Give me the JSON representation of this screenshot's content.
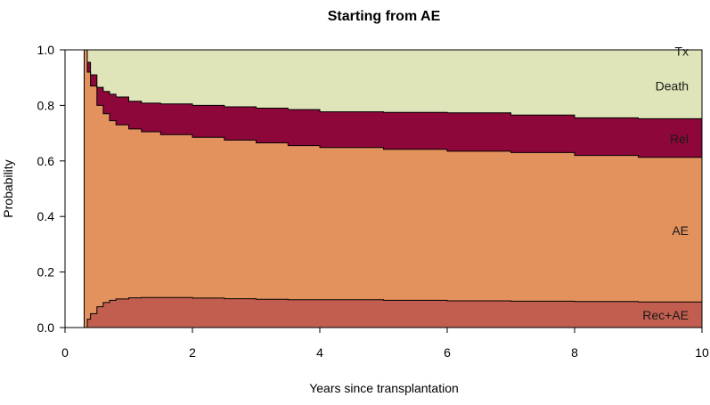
{
  "chart_data": {
    "type": "area",
    "stacked": true,
    "title": "Starting from AE",
    "xlabel": "Years since transplantation",
    "ylabel": "Probability",
    "xlim": [
      0,
      10
    ],
    "ylim": [
      0,
      1
    ],
    "xticks": [
      "0",
      "2",
      "4",
      "6",
      "8",
      "10"
    ],
    "yticks": [
      "0.0",
      "0.2",
      "0.4",
      "0.6",
      "0.8",
      "1.0"
    ],
    "x": [
      0.3,
      0.35,
      0.4,
      0.5,
      0.6,
      0.7,
      0.8,
      1.0,
      1.2,
      1.5,
      2.0,
      2.5,
      3.0,
      3.5,
      4.0,
      5.0,
      6.0,
      7.0,
      8.0,
      9.0,
      10.0
    ],
    "cumulative_upper_bounds": {
      "Rec+AE": [
        0.0,
        0.03,
        0.05,
        0.075,
        0.09,
        0.098,
        0.103,
        0.107,
        0.108,
        0.108,
        0.106,
        0.104,
        0.102,
        0.1,
        0.1,
        0.098,
        0.096,
        0.095,
        0.094,
        0.092,
        0.09
      ],
      "AE": [
        1.0,
        0.92,
        0.87,
        0.8,
        0.77,
        0.745,
        0.73,
        0.715,
        0.705,
        0.695,
        0.685,
        0.675,
        0.665,
        0.655,
        0.648,
        0.642,
        0.635,
        0.63,
        0.62,
        0.613,
        0.61
      ],
      "Rel": [
        1.0,
        0.955,
        0.91,
        0.865,
        0.85,
        0.84,
        0.83,
        0.815,
        0.808,
        0.805,
        0.8,
        0.795,
        0.79,
        0.785,
        0.777,
        0.775,
        0.773,
        0.765,
        0.755,
        0.752,
        0.75
      ],
      "Death": [
        1.0,
        1.0,
        1.0,
        1.0,
        1.0,
        1.0,
        1.0,
        1.0,
        1.0,
        1.0,
        1.0,
        1.0,
        1.0,
        1.0,
        1.0,
        1.0,
        1.0,
        1.0,
        1.0,
        1.0,
        1.0
      ],
      "Tx": [
        1.0,
        1.0,
        1.0,
        1.0,
        1.0,
        1.0,
        1.0,
        1.0,
        1.0,
        1.0,
        1.0,
        1.0,
        1.0,
        1.0,
        1.0,
        1.0,
        1.0,
        1.0,
        1.0,
        1.0,
        1.0
      ]
    },
    "series": [
      {
        "name": "Rec+AE",
        "color": "#c25e4f",
        "label_y": 0.045
      },
      {
        "name": "AE",
        "color": "#e3925e",
        "label_y": 0.35
      },
      {
        "name": "Rel",
        "color": "#8e073a",
        "label_y": 0.68
      },
      {
        "name": "Death",
        "color": "#dfe5b9",
        "label_y": 0.87
      },
      {
        "name": "Tx",
        "color": "#dfe5b9",
        "label_y": 0.995
      }
    ]
  }
}
